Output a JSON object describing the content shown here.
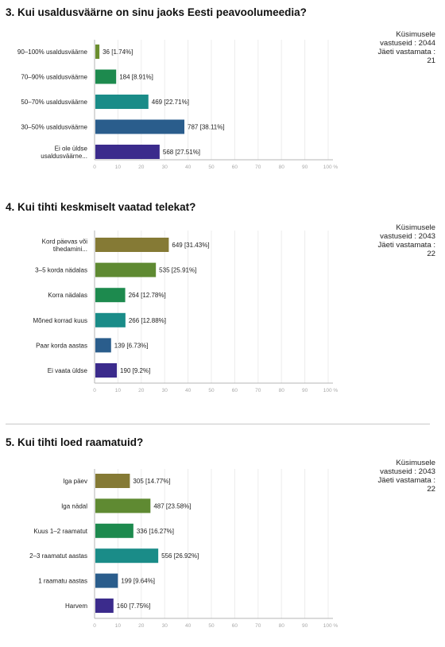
{
  "chart_data": [
    {
      "type": "bar",
      "orientation": "horizontal",
      "title": "3. Kui usaldusväärne on sinu jaoks Eesti peavoolumeedia?",
      "stats": [
        "Küsimusele",
        "vastuseid : 2044",
        "Jäeti vastamata :",
        "21"
      ],
      "categories": [
        [
          "90–100% usaldusväärne"
        ],
        [
          "70–90% usaldusväärne"
        ],
        [
          "50–70% usaldusväärne"
        ],
        [
          "30–50% usaldusväärne"
        ],
        [
          "Ei ole üldse",
          "usaldusväärne..."
        ]
      ],
      "values": [
        1.74,
        8.91,
        22.71,
        38.11,
        27.51
      ],
      "data_labels": [
        "36 [1.74%]",
        "184 [8.91%]",
        "469 [22.71%]",
        "787 [38.11%]",
        "568 [27.51%]"
      ],
      "colors": [
        "#6b8e2f",
        "#1d8a4e",
        "#1a8c88",
        "#2a5d8c",
        "#3b2b8c"
      ],
      "xlim": [
        0,
        100
      ],
      "xticks": [
        "0",
        "10",
        "20",
        "30",
        "40",
        "50",
        "60",
        "70",
        "80",
        "90",
        "100 %"
      ],
      "grid": true
    },
    {
      "type": "bar",
      "orientation": "horizontal",
      "title": "4. Kui tihti keskmiselt vaatad telekat?",
      "stats": [
        "Küsimusele",
        "vastuseid : 2043",
        "Jäeti vastamata :",
        "22"
      ],
      "categories": [
        [
          "Kord päevas või",
          "tihedamini..."
        ],
        [
          "3–5 korda nädalas"
        ],
        [
          "Korra nädalas"
        ],
        [
          "Mõned korrad kuus"
        ],
        [
          "Paar korda aastas"
        ],
        [
          "Ei vaata üldse"
        ]
      ],
      "values": [
        31.43,
        25.91,
        12.78,
        12.88,
        6.73,
        9.2
      ],
      "data_labels": [
        "649 [31.43%]",
        "535 [25.91%]",
        "264 [12.78%]",
        "266 [12.88%]",
        "139 [6.73%]",
        "190 [9.2%]"
      ],
      "colors": [
        "#857a35",
        "#5f8a32",
        "#1d8a4e",
        "#1a8c88",
        "#2a5d8c",
        "#3b2b8c"
      ],
      "xlim": [
        0,
        100
      ],
      "xticks": [
        "0",
        "10",
        "20",
        "30",
        "40",
        "50",
        "60",
        "70",
        "80",
        "90",
        "100 %"
      ],
      "grid": true
    },
    {
      "type": "bar",
      "orientation": "horizontal",
      "title": "5. Kui tihti loed raamatuid?",
      "stats": [
        "Küsimusele",
        "vastuseid : 2043",
        "Jäeti vastamata :",
        "22"
      ],
      "categories": [
        [
          "Iga päev"
        ],
        [
          "Iga nädal"
        ],
        [
          "Kuus 1–2 raamatut"
        ],
        [
          "2–3 raamatut aastas"
        ],
        [
          "1 raamatu aastas"
        ],
        [
          "Harvem"
        ]
      ],
      "values": [
        14.77,
        23.58,
        16.27,
        26.92,
        9.64,
        7.75
      ],
      "data_labels": [
        "305 [14.77%]",
        "487 [23.58%]",
        "336 [16.27%]",
        "556 [26.92%]",
        "199 [9.64%]",
        "160 [7.75%]"
      ],
      "colors": [
        "#857a35",
        "#5f8a32",
        "#1d8a4e",
        "#1a8c88",
        "#2a5d8c",
        "#3b2b8c"
      ],
      "xlim": [
        0,
        100
      ],
      "xticks": [
        "0",
        "10",
        "20",
        "30",
        "40",
        "50",
        "60",
        "70",
        "80",
        "90",
        "100 %"
      ],
      "grid": true
    }
  ]
}
